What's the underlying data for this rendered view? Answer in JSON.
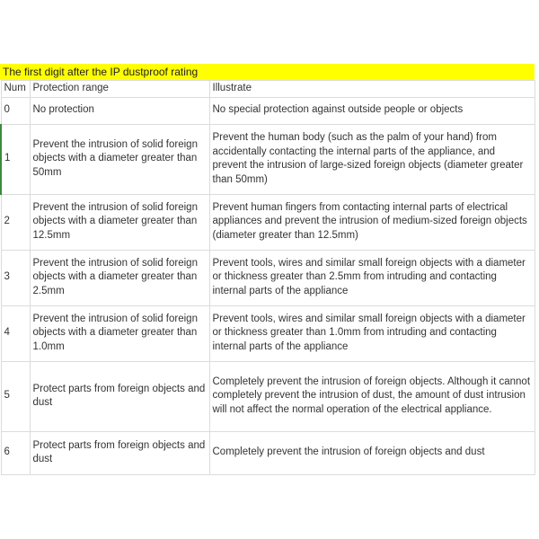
{
  "title": "The first digit after the IP dustproof rating",
  "headers": {
    "num": "Num",
    "range": "Protection range",
    "illustrate": "Illustrate"
  },
  "rows": [
    {
      "num": "0",
      "range": "No protection",
      "illustrate": "No special protection against outside people or objects"
    },
    {
      "num": "1",
      "range": "Prevent the intrusion of solid foreign objects with a diameter greater than 50mm",
      "illustrate": "Prevent the human body (such as the palm of your hand) from accidentally contacting the internal parts of the appliance, and prevent the intrusion of large-sized foreign objects (diameter greater than 50mm)"
    },
    {
      "num": "2",
      "range": "Prevent the intrusion of solid foreign objects with a diameter greater than 12.5mm",
      "illustrate": "Prevent human fingers from contacting internal parts of electrical appliances and prevent the intrusion of medium-sized foreign objects (diameter greater than 12.5mm)"
    },
    {
      "num": "3",
      "range": "Prevent the intrusion of solid foreign objects with a diameter greater than 2.5mm",
      "illustrate": "Prevent tools, wires and similar small foreign objects with a diameter or thickness greater than 2.5mm from intruding and contacting internal parts of the appliance"
    },
    {
      "num": "4",
      "range": "Prevent the intrusion of solid foreign objects with a diameter greater than 1.0mm",
      "illustrate": "Prevent tools, wires and similar small foreign objects with a diameter or thickness greater than 1.0mm from intruding and contacting internal parts of the appliance"
    },
    {
      "num": "5",
      "range": "Protect parts from foreign objects and dust",
      "illustrate": "Completely prevent the intrusion of foreign objects. Although it cannot completely prevent the intrusion of dust, the amount of dust intrusion will not affect the normal operation of the electrical appliance."
    },
    {
      "num": "6",
      "range": "Protect parts from foreign objects and dust",
      "illustrate": "Completely prevent the intrusion of foreign objects and dust"
    }
  ],
  "colors": {
    "title_bg": "#ffff00",
    "grid": "#dcdcdc",
    "selection": "#3a8a3a"
  }
}
